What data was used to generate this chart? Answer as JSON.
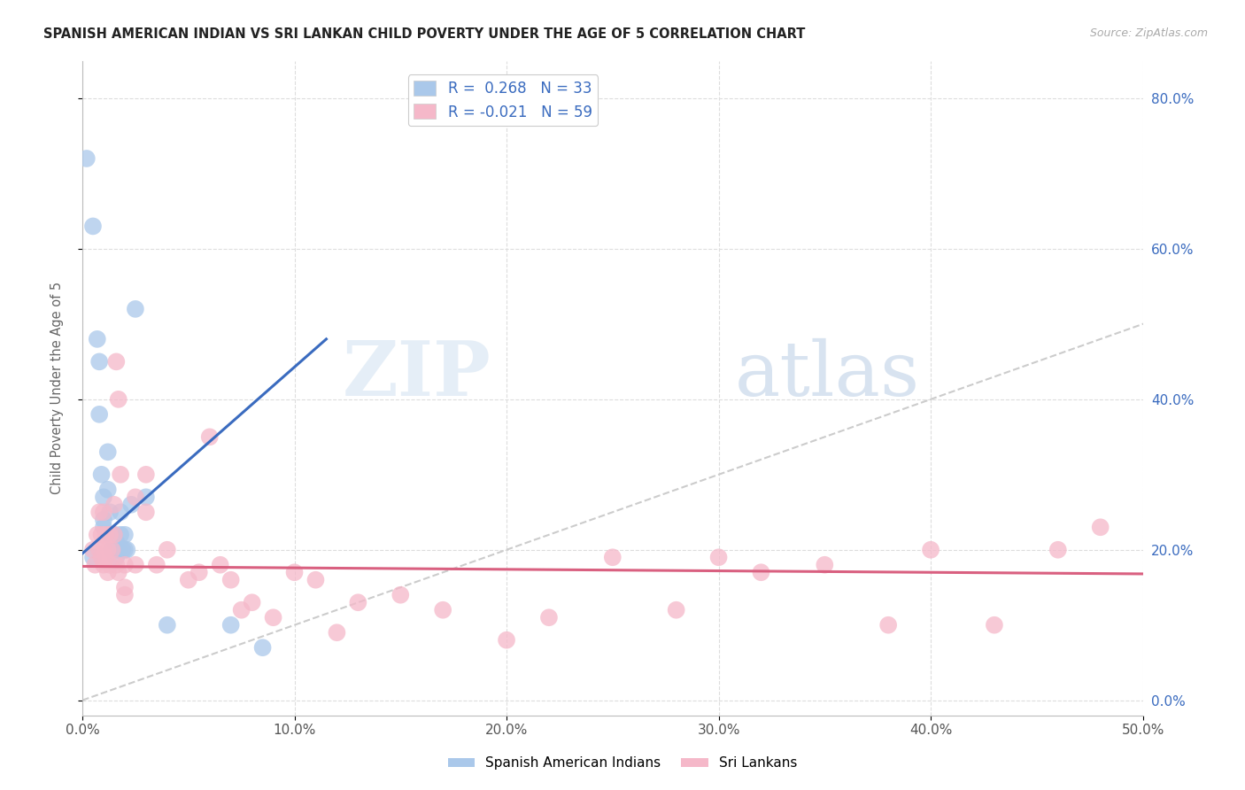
{
  "title": "SPANISH AMERICAN INDIAN VS SRI LANKAN CHILD POVERTY UNDER THE AGE OF 5 CORRELATION CHART",
  "source": "Source: ZipAtlas.com",
  "ylabel": "Child Poverty Under the Age of 5",
  "xlim": [
    0.0,
    0.5
  ],
  "ylim": [
    -0.02,
    0.85
  ],
  "blue_R": "0.268",
  "blue_N": "33",
  "pink_R": "-0.021",
  "pink_N": "59",
  "blue_color": "#aac8ea",
  "blue_line_color": "#3a6bbf",
  "pink_color": "#f5b8c9",
  "pink_line_color": "#d96080",
  "diagonal_color": "#cccccc",
  "legend_label_blue": "Spanish American Indians",
  "legend_label_pink": "Sri Lankans",
  "watermark_zip": "ZIP",
  "watermark_atlas": "atlas",
  "blue_scatter_x": [
    0.002,
    0.005,
    0.005,
    0.007,
    0.008,
    0.008,
    0.009,
    0.01,
    0.01,
    0.01,
    0.012,
    0.012,
    0.013,
    0.013,
    0.014,
    0.014,
    0.015,
    0.015,
    0.016,
    0.016,
    0.017,
    0.018,
    0.018,
    0.019,
    0.02,
    0.02,
    0.021,
    0.023,
    0.025,
    0.03,
    0.04,
    0.07,
    0.085
  ],
  "blue_scatter_y": [
    0.72,
    0.63,
    0.19,
    0.48,
    0.45,
    0.38,
    0.3,
    0.27,
    0.24,
    0.23,
    0.33,
    0.28,
    0.25,
    0.22,
    0.22,
    0.2,
    0.22,
    0.2,
    0.21,
    0.19,
    0.2,
    0.25,
    0.22,
    0.2,
    0.22,
    0.2,
    0.2,
    0.26,
    0.52,
    0.27,
    0.1,
    0.1,
    0.07
  ],
  "pink_scatter_x": [
    0.005,
    0.006,
    0.007,
    0.008,
    0.008,
    0.009,
    0.009,
    0.01,
    0.01,
    0.01,
    0.011,
    0.011,
    0.012,
    0.012,
    0.013,
    0.013,
    0.014,
    0.015,
    0.015,
    0.016,
    0.016,
    0.017,
    0.017,
    0.018,
    0.02,
    0.02,
    0.02,
    0.025,
    0.025,
    0.03,
    0.03,
    0.035,
    0.04,
    0.05,
    0.055,
    0.06,
    0.065,
    0.07,
    0.075,
    0.08,
    0.09,
    0.1,
    0.11,
    0.12,
    0.13,
    0.15,
    0.17,
    0.2,
    0.22,
    0.25,
    0.28,
    0.3,
    0.32,
    0.35,
    0.38,
    0.4,
    0.43,
    0.46,
    0.48
  ],
  "pink_scatter_y": [
    0.2,
    0.18,
    0.22,
    0.25,
    0.2,
    0.22,
    0.19,
    0.25,
    0.2,
    0.18,
    0.22,
    0.19,
    0.2,
    0.17,
    0.22,
    0.18,
    0.2,
    0.26,
    0.22,
    0.18,
    0.45,
    0.4,
    0.17,
    0.3,
    0.18,
    0.15,
    0.14,
    0.27,
    0.18,
    0.3,
    0.25,
    0.18,
    0.2,
    0.16,
    0.17,
    0.35,
    0.18,
    0.16,
    0.12,
    0.13,
    0.11,
    0.17,
    0.16,
    0.09,
    0.13,
    0.14,
    0.12,
    0.08,
    0.11,
    0.19,
    0.12,
    0.19,
    0.17,
    0.18,
    0.1,
    0.2,
    0.1,
    0.2,
    0.23
  ],
  "blue_line_x0": 0.0,
  "blue_line_x1": 0.115,
  "blue_line_y0": 0.195,
  "blue_line_y1": 0.48,
  "pink_line_x0": 0.0,
  "pink_line_x1": 0.5,
  "pink_line_y0": 0.178,
  "pink_line_y1": 0.168,
  "background_color": "#ffffff",
  "grid_color": "#dddddd"
}
